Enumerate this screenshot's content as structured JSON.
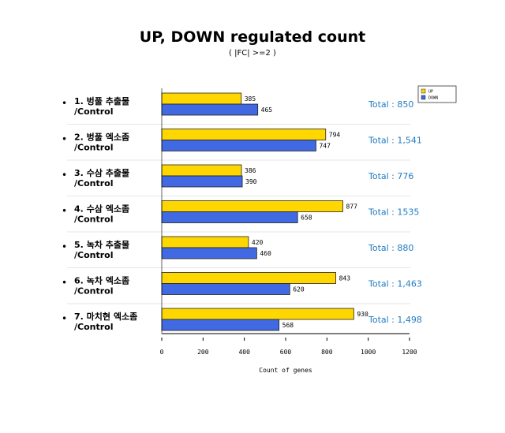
{
  "chart_data": {
    "type": "bar",
    "orientation": "horizontal",
    "title": "UP, DOWN regulated count",
    "subtitle": "( |FC| >=2 )",
    "xlabel": "Count of genes",
    "ylabel": "",
    "xlim": [
      0,
      1200
    ],
    "xticks": [
      0,
      200,
      400,
      600,
      800,
      1000,
      1200
    ],
    "legend_position": "top-right",
    "grid": false,
    "categories": [
      {
        "line1": "1. 벙풀 추출물",
        "line2": "/Control"
      },
      {
        "line1": "2. 벙풀 엑소좀",
        "line2": "/Control"
      },
      {
        "line1": "3. 수삼 추출물",
        "line2": "/Control"
      },
      {
        "line1": "4. 수삼 엑소좀",
        "line2": "/Control"
      },
      {
        "line1": "5. 녹차 추출물",
        "line2": "/Control"
      },
      {
        "line1": "6. 녹차 엑소좀",
        "line2": "/Control"
      },
      {
        "line1": "7. 마치현 엑소좀",
        "line2": "/Control"
      }
    ],
    "series": [
      {
        "name": "UP",
        "color": "#ffd700",
        "values": [
          385,
          794,
          386,
          877,
          420,
          843,
          930
        ]
      },
      {
        "name": "DOWN",
        "color": "#4169e1",
        "values": [
          465,
          747,
          390,
          658,
          460,
          620,
          568
        ]
      }
    ],
    "totals": [
      "Total : 850",
      "Total : 1,541",
      "Total : 776",
      "Total : 1535",
      "Total : 880",
      "Total : 1,463",
      "Total : 1,498"
    ]
  }
}
